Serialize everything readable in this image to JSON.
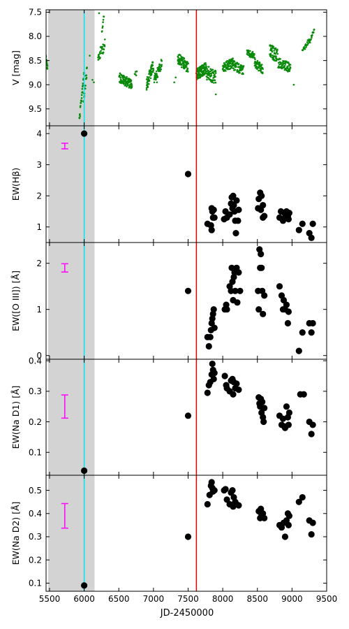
{
  "figure": {
    "xlabel": "JD-2450000",
    "colors": {
      "shade": "#d3d3d3",
      "cyan_line": "#00e5ee",
      "red_line": "#e00000",
      "v_points": "#0a8a0a",
      "ew_points": "#000000",
      "error_bar": "#ff00ff"
    }
  },
  "chart_data": [
    {
      "type": "scatter",
      "panel": "V",
      "ylabel": "V [mag]",
      "xlim": [
        5450,
        9500
      ],
      "ylim": [
        9.85,
        7.45
      ],
      "y_inverted": true,
      "yticks": [
        7.5,
        8.0,
        8.5,
        9.0,
        9.5
      ],
      "shaded_range": [
        5480,
        6150
      ],
      "vlines": [
        6000,
        7620
      ],
      "segments": [
        {
          "x0": 5440,
          "x1": 5470,
          "y0": 8.35,
          "y1": 8.65,
          "n": 24,
          "noise": 0.05
        },
        {
          "x0": 5930,
          "x1": 6000,
          "y0": 9.75,
          "y1": 8.7,
          "n": 26,
          "noise": 0.08
        },
        {
          "x0": 5990,
          "x1": 6040,
          "y0": 9.3,
          "y1": 8.7,
          "n": 18,
          "noise": 0.1
        },
        {
          "x0": 6200,
          "x1": 6300,
          "y0": 8.45,
          "y1": 8.15,
          "n": 28,
          "noise": 0.12
        },
        {
          "x0": 6255,
          "x1": 6285,
          "y0": 7.95,
          "y1": 7.55,
          "n": 8,
          "noise": 0.05
        },
        {
          "x0": 6505,
          "x1": 6690,
          "y0": 8.85,
          "y1": 9.0,
          "n": 90,
          "noise": 0.1
        },
        {
          "x0": 6730,
          "x1": 6760,
          "y0": 8.8,
          "y1": 8.75,
          "n": 8,
          "noise": 0.05
        },
        {
          "x0": 6900,
          "x1": 7000,
          "y0": 9.0,
          "y1": 8.6,
          "n": 55,
          "noise": 0.12
        },
        {
          "x0": 7010,
          "x1": 7120,
          "y0": 8.9,
          "y1": 8.55,
          "n": 45,
          "noise": 0.1
        },
        {
          "x0": 7350,
          "x1": 7500,
          "y0": 8.45,
          "y1": 8.65,
          "n": 80,
          "noise": 0.12
        },
        {
          "x0": 7620,
          "x1": 7760,
          "y0": 8.8,
          "y1": 8.65,
          "n": 110,
          "noise": 0.12
        },
        {
          "x0": 7760,
          "x1": 7900,
          "y0": 8.75,
          "y1": 8.85,
          "n": 60,
          "noise": 0.15
        },
        {
          "x0": 8000,
          "x1": 8150,
          "y0": 8.65,
          "y1": 8.55,
          "n": 70,
          "noise": 0.1
        },
        {
          "x0": 8150,
          "x1": 8300,
          "y0": 8.6,
          "y1": 8.7,
          "n": 55,
          "noise": 0.1
        },
        {
          "x0": 8350,
          "x1": 8460,
          "y0": 8.35,
          "y1": 8.4,
          "n": 40,
          "noise": 0.07
        },
        {
          "x0": 8460,
          "x1": 8580,
          "y0": 8.55,
          "y1": 8.7,
          "n": 50,
          "noise": 0.1
        },
        {
          "x0": 8680,
          "x1": 8790,
          "y0": 8.3,
          "y1": 8.4,
          "n": 55,
          "noise": 0.14
        },
        {
          "x0": 8800,
          "x1": 8980,
          "y0": 8.55,
          "y1": 8.65,
          "n": 65,
          "noise": 0.1
        },
        {
          "x0": 9150,
          "x1": 9260,
          "y0": 8.3,
          "y1": 8.05,
          "n": 22,
          "noise": 0.05
        },
        {
          "x0": 9260,
          "x1": 9320,
          "y0": 8.1,
          "y1": 7.85,
          "n": 14,
          "noise": 0.04
        }
      ],
      "extra_points": [
        [
          6120,
          8.9
        ],
        [
          6140,
          8.95
        ],
        [
          6215,
          7.52
        ],
        [
          6080,
          8.4
        ],
        [
          9025,
          9.0
        ],
        [
          7320,
          8.85
        ],
        [
          7900,
          9.2
        ],
        [
          6920,
          9.05
        ],
        [
          7300,
          8.95
        ],
        [
          7050,
          8.95
        ]
      ]
    },
    {
      "type": "scatter",
      "panel": "Hbeta",
      "ylabel": "EW(Hβ)",
      "xlim": [
        5450,
        9500
      ],
      "ylim": [
        0.5,
        4.25
      ],
      "yticks": [
        1,
        2,
        3,
        4
      ],
      "error_bar": {
        "x": 5720,
        "center": 3.6,
        "half": 0.09
      },
      "points": [
        [
          6000,
          4.0
        ],
        [
          7500,
          2.7
        ],
        [
          7780,
          1.1
        ],
        [
          7830,
          1.05
        ],
        [
          7840,
          1.6
        ],
        [
          7850,
          1.5
        ],
        [
          7860,
          1.3
        ],
        [
          7870,
          1.55
        ],
        [
          7880,
          1.3
        ],
        [
          7840,
          0.9
        ],
        [
          8020,
          1.25
        ],
        [
          8040,
          1.5
        ],
        [
          8060,
          1.3
        ],
        [
          8100,
          1.4
        ],
        [
          8120,
          1.75
        ],
        [
          8130,
          1.95
        ],
        [
          8140,
          1.6
        ],
        [
          8150,
          2.0
        ],
        [
          8160,
          1.7
        ],
        [
          8170,
          1.5
        ],
        [
          8180,
          1.2
        ],
        [
          8190,
          0.8
        ],
        [
          8200,
          1.85
        ],
        [
          8220,
          1.2
        ],
        [
          8230,
          1.55
        ],
        [
          8510,
          1.6
        ],
        [
          8520,
          1.9
        ],
        [
          8540,
          2.1
        ],
        [
          8550,
          1.55
        ],
        [
          8560,
          2.0
        ],
        [
          8580,
          1.3
        ],
        [
          8600,
          1.35
        ],
        [
          8580,
          1.7
        ],
        [
          8820,
          1.3
        ],
        [
          8840,
          1.5
        ],
        [
          8870,
          1.2
        ],
        [
          8890,
          1.45
        ],
        [
          8900,
          1.3
        ],
        [
          8920,
          1.5
        ],
        [
          8940,
          1.35
        ],
        [
          8950,
          1.25
        ],
        [
          8960,
          1.45
        ],
        [
          9100,
          0.9
        ],
        [
          9150,
          1.1
        ],
        [
          9250,
          0.8
        ],
        [
          9280,
          0.65
        ],
        [
          9300,
          1.1
        ]
      ]
    },
    {
      "type": "scatter",
      "panel": "OIII",
      "ylabel": "EW([O III]) [Å]",
      "xlim": [
        5450,
        9500
      ],
      "ylim": [
        -0.08,
        2.45
      ],
      "yticks": [
        0,
        1,
        2
      ],
      "error_bar": {
        "x": 5720,
        "center": 1.9,
        "half": 0.09
      },
      "points": [
        [
          7500,
          1.4
        ],
        [
          7780,
          0.4
        ],
        [
          7800,
          0.2
        ],
        [
          7820,
          0.4
        ],
        [
          7830,
          0.55
        ],
        [
          7840,
          0.7
        ],
        [
          7850,
          0.8
        ],
        [
          7860,
          0.9
        ],
        [
          7870,
          1.0
        ],
        [
          7880,
          0.6
        ],
        [
          8030,
          1.0
        ],
        [
          8050,
          1.1
        ],
        [
          8060,
          1.0
        ],
        [
          8100,
          1.5
        ],
        [
          8120,
          1.4
        ],
        [
          8130,
          1.9
        ],
        [
          8140,
          1.6
        ],
        [
          8150,
          1.2
        ],
        [
          8160,
          1.7
        ],
        [
          8170,
          1.8
        ],
        [
          8180,
          1.4
        ],
        [
          8200,
          1.9
        ],
        [
          8210,
          1.15
        ],
        [
          8230,
          1.8
        ],
        [
          8250,
          1.4
        ],
        [
          8510,
          1.4
        ],
        [
          8520,
          1.0
        ],
        [
          8530,
          2.3
        ],
        [
          8540,
          1.9
        ],
        [
          8550,
          2.2
        ],
        [
          8560,
          1.9
        ],
        [
          8570,
          1.4
        ],
        [
          8580,
          0.9
        ],
        [
          8600,
          1.3
        ],
        [
          8820,
          1.5
        ],
        [
          8850,
          1.3
        ],
        [
          8870,
          1.0
        ],
        [
          8880,
          1.2
        ],
        [
          8900,
          1.0
        ],
        [
          8920,
          1.1
        ],
        [
          8940,
          0.7
        ],
        [
          8950,
          0.95
        ],
        [
          9100,
          0.1
        ],
        [
          9150,
          0.5
        ],
        [
          9250,
          0.7
        ],
        [
          9280,
          0.5
        ],
        [
          9300,
          0.7
        ]
      ]
    },
    {
      "type": "scatter",
      "panel": "NaD1",
      "ylabel": "EW(Na D1) [Å]",
      "xlim": [
        5450,
        9500
      ],
      "ylim": [
        0.025,
        0.405
      ],
      "yticks": [
        0.1,
        0.2,
        0.3,
        0.4
      ],
      "error_bar": {
        "x": 5720,
        "center": 0.25,
        "half": 0.038
      },
      "points": [
        [
          6000,
          0.04
        ],
        [
          7500,
          0.22
        ],
        [
          7780,
          0.295
        ],
        [
          7800,
          0.32
        ],
        [
          7820,
          0.33
        ],
        [
          7840,
          0.355
        ],
        [
          7850,
          0.39
        ],
        [
          7860,
          0.37
        ],
        [
          7870,
          0.34
        ],
        [
          7880,
          0.36
        ],
        [
          8030,
          0.35
        ],
        [
          8050,
          0.32
        ],
        [
          8060,
          0.31
        ],
        [
          8100,
          0.3
        ],
        [
          8120,
          0.335
        ],
        [
          8140,
          0.34
        ],
        [
          8150,
          0.29
        ],
        [
          8160,
          0.33
        ],
        [
          8180,
          0.31
        ],
        [
          8200,
          0.325
        ],
        [
          8230,
          0.305
        ],
        [
          8520,
          0.28
        ],
        [
          8530,
          0.26
        ],
        [
          8540,
          0.25
        ],
        [
          8550,
          0.275
        ],
        [
          8560,
          0.23
        ],
        [
          8570,
          0.265
        ],
        [
          8580,
          0.215
        ],
        [
          8590,
          0.2
        ],
        [
          8600,
          0.245
        ],
        [
          8820,
          0.22
        ],
        [
          8850,
          0.19
        ],
        [
          8870,
          0.21
        ],
        [
          8890,
          0.185
        ],
        [
          8900,
          0.18
        ],
        [
          8920,
          0.25
        ],
        [
          8940,
          0.215
        ],
        [
          8950,
          0.19
        ],
        [
          8960,
          0.23
        ],
        [
          9120,
          0.29
        ],
        [
          9170,
          0.29
        ],
        [
          9250,
          0.2
        ],
        [
          9280,
          0.16
        ],
        [
          9300,
          0.19
        ]
      ]
    },
    {
      "type": "scatter",
      "panel": "NaD2",
      "ylabel": "EW(Na D2) [Å]",
      "xlim": [
        5450,
        9500
      ],
      "ylim": [
        0.065,
        0.565
      ],
      "yticks": [
        0.1,
        0.2,
        0.3,
        0.4,
        0.5
      ],
      "error_bar": {
        "x": 5720,
        "center": 0.39,
        "half": 0.053
      },
      "points": [
        [
          6000,
          0.09
        ],
        [
          7500,
          0.3
        ],
        [
          7780,
          0.44
        ],
        [
          7810,
          0.48
        ],
        [
          7830,
          0.52
        ],
        [
          7840,
          0.535
        ],
        [
          7850,
          0.51
        ],
        [
          7860,
          0.495
        ],
        [
          7880,
          0.5
        ],
        [
          8020,
          0.5
        ],
        [
          8040,
          0.505
        ],
        [
          8060,
          0.46
        ],
        [
          8100,
          0.44
        ],
        [
          8120,
          0.49
        ],
        [
          8140,
          0.5
        ],
        [
          8150,
          0.43
        ],
        [
          8160,
          0.47
        ],
        [
          8180,
          0.45
        ],
        [
          8200,
          0.44
        ],
        [
          8230,
          0.435
        ],
        [
          8520,
          0.41
        ],
        [
          8540,
          0.38
        ],
        [
          8550,
          0.42
        ],
        [
          8560,
          0.395
        ],
        [
          8580,
          0.4
        ],
        [
          8600,
          0.38
        ],
        [
          8820,
          0.35
        ],
        [
          8850,
          0.34
        ],
        [
          8880,
          0.36
        ],
        [
          8900,
          0.3
        ],
        [
          8920,
          0.37
        ],
        [
          8940,
          0.4
        ],
        [
          8950,
          0.35
        ],
        [
          8960,
          0.39
        ],
        [
          9100,
          0.45
        ],
        [
          9150,
          0.47
        ],
        [
          9250,
          0.37
        ],
        [
          9280,
          0.31
        ],
        [
          9300,
          0.36
        ]
      ]
    }
  ]
}
